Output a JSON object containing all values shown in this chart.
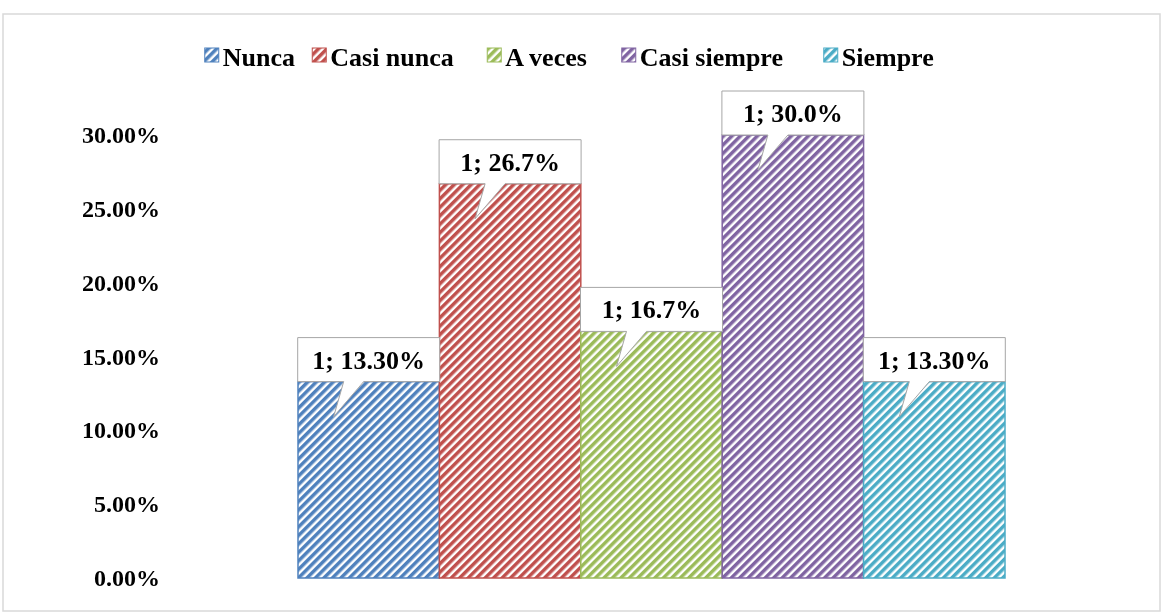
{
  "chart_data": {
    "type": "bar",
    "categories": [
      null
    ],
    "series": [
      {
        "name": "Nunca",
        "color": "#4f81bd",
        "values": [
          13.3
        ],
        "value_labels": [
          "1; 13.30%"
        ]
      },
      {
        "name": "Casi nunca",
        "color": "#c0504d",
        "values": [
          26.7
        ],
        "value_labels": [
          "1; 26.7%"
        ]
      },
      {
        "name": "A veces",
        "color": "#9bbb59",
        "values": [
          16.7
        ],
        "value_labels": [
          "1; 16.7%"
        ]
      },
      {
        "name": "Casi siempre",
        "color": "#8064a2",
        "values": [
          30.0
        ],
        "value_labels": [
          "1; 30.0%"
        ]
      },
      {
        "name": "Siempre",
        "color": "#4bacc6",
        "values": [
          13.3
        ],
        "value_labels": [
          "1; 13.30%"
        ]
      }
    ],
    "ylim": [
      0,
      30
    ],
    "yticks": [
      {
        "value": 0,
        "label": "0.00%"
      },
      {
        "value": 5,
        "label": "5.00%"
      },
      {
        "value": 10,
        "label": "10.00%"
      },
      {
        "value": 15,
        "label": "15.00%"
      },
      {
        "value": 20,
        "label": "20.00%"
      },
      {
        "value": 25,
        "label": "25.00%"
      },
      {
        "value": 30,
        "label": "30.00%"
      }
    ],
    "grid": false,
    "legend": "top"
  }
}
